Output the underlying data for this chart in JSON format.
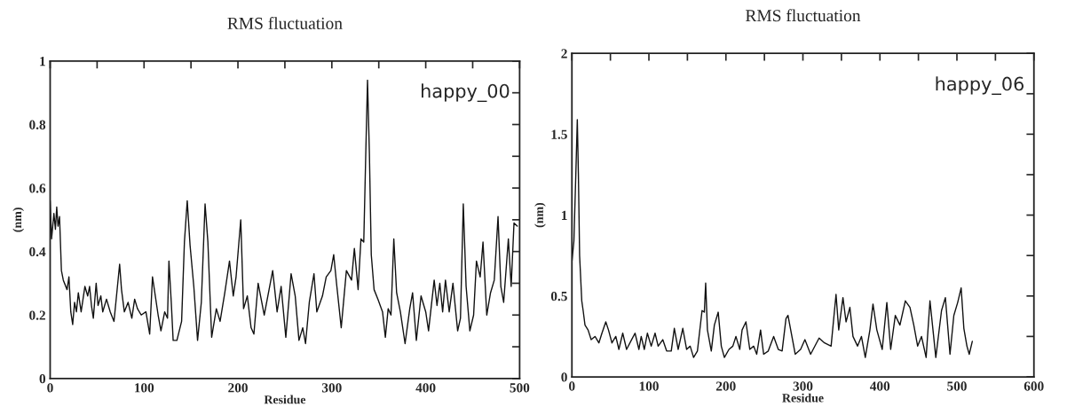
{
  "chart_data": [
    {
      "type": "line",
      "title": "RMS fluctuation",
      "xlabel": "Residue",
      "ylabel": "(nm)",
      "annotations": [
        "happy_00"
      ],
      "xlim": [
        0,
        500
      ],
      "ylim": [
        0,
        1
      ],
      "xticks": [
        0,
        {
          "value": 50,
          "label": null
        },
        100,
        {
          "value": 150,
          "label": null
        },
        200,
        {
          "value": 250,
          "label": null
        },
        300,
        {
          "value": 350,
          "label": null
        },
        400,
        {
          "value": 450,
          "label": null
        },
        500
      ],
      "yticks": [
        0,
        {
          "value": 0.1,
          "label": null
        },
        0.2,
        {
          "value": 0.3,
          "label": null
        },
        0.4,
        {
          "value": 0.5,
          "label": null
        },
        0.6,
        {
          "value": 0.7,
          "label": null
        },
        0.8,
        {
          "value": 0.9,
          "label": null
        },
        1
      ],
      "grid": false,
      "series": [
        {
          "color": "#111111",
          "x": [
            0,
            1.5,
            4,
            5.6,
            7,
            8.4,
            10,
            12,
            14,
            18,
            20,
            22,
            24,
            26,
            28,
            30,
            33,
            37,
            40,
            42,
            44,
            46,
            49,
            51,
            54,
            56,
            60,
            64,
            68,
            70,
            74,
            76,
            79,
            83,
            87,
            90,
            93,
            97,
            102,
            106,
            109,
            111,
            115,
            118,
            122,
            125,
            126.5,
            129,
            131,
            135,
            140,
            143,
            146,
            149,
            153,
            157,
            161,
            165,
            168,
            172,
            177,
            181,
            186,
            191,
            195,
            198,
            203,
            206,
            210,
            214,
            217,
            221.5,
            228,
            237,
            241.7,
            246,
            251,
            256.6,
            261,
            265,
            269,
            272,
            276,
            281,
            284,
            290,
            294,
            299,
            302,
            305,
            310,
            315.5,
            321,
            324,
            328,
            331,
            334,
            336,
            338,
            340,
            342,
            345,
            349,
            354,
            357,
            360,
            363,
            366,
            369,
            373,
            378,
            383,
            386,
            390,
            395,
            400,
            403,
            409,
            412,
            415,
            418,
            421,
            425,
            429,
            434,
            437,
            440,
            443,
            447,
            451,
            454,
            458,
            461,
            465,
            469,
            473,
            477,
            480,
            483,
            488,
            491,
            494,
            497.5
          ],
          "values": [
            0.56,
            0.44,
            0.52,
            0.47,
            0.54,
            0.48,
            0.51,
            0.34,
            0.31,
            0.28,
            0.32,
            0.21,
            0.17,
            0.24,
            0.21,
            0.27,
            0.21,
            0.29,
            0.26,
            0.29,
            0.23,
            0.19,
            0.3,
            0.23,
            0.26,
            0.21,
            0.25,
            0.21,
            0.18,
            0.24,
            0.36,
            0.28,
            0.21,
            0.24,
            0.19,
            0.25,
            0.22,
            0.2,
            0.21,
            0.14,
            0.32,
            0.28,
            0.2,
            0.15,
            0.21,
            0.19,
            0.37,
            0.24,
            0.12,
            0.12,
            0.18,
            0.43,
            0.56,
            0.42,
            0.29,
            0.12,
            0.24,
            0.55,
            0.43,
            0.13,
            0.22,
            0.18,
            0.27,
            0.37,
            0.26,
            0.32,
            0.5,
            0.22,
            0.26,
            0.16,
            0.14,
            0.3,
            0.2,
            0.34,
            0.21,
            0.29,
            0.13,
            0.33,
            0.26,
            0.12,
            0.16,
            0.11,
            0.24,
            0.33,
            0.21,
            0.26,
            0.32,
            0.34,
            0.39,
            0.3,
            0.16,
            0.34,
            0.31,
            0.41,
            0.28,
            0.44,
            0.43,
            0.69,
            0.94,
            0.71,
            0.39,
            0.28,
            0.25,
            0.21,
            0.13,
            0.22,
            0.2,
            0.44,
            0.27,
            0.21,
            0.11,
            0.22,
            0.27,
            0.12,
            0.26,
            0.21,
            0.15,
            0.31,
            0.23,
            0.3,
            0.21,
            0.31,
            0.21,
            0.3,
            0.15,
            0.19,
            0.55,
            0.29,
            0.15,
            0.2,
            0.37,
            0.32,
            0.43,
            0.2,
            0.27,
            0.31,
            0.51,
            0.29,
            0.24,
            0.44,
            0.29,
            0.49,
            0.48
          ]
        }
      ]
    },
    {
      "type": "line",
      "title": "RMS fluctuation",
      "xlabel": "Residue",
      "ylabel": "(nm)",
      "annotations": [
        "happy_06"
      ],
      "xlim": [
        0,
        600
      ],
      "ylim": [
        0,
        2
      ],
      "xticks": [
        0,
        {
          "value": 50,
          "label": null
        },
        100,
        {
          "value": 150,
          "label": null
        },
        200,
        {
          "value": 250,
          "label": null
        },
        300,
        {
          "value": 350,
          "label": null
        },
        400,
        {
          "value": 450,
          "label": null
        },
        500,
        {
          "value": 550,
          "label": null
        },
        600
      ],
      "yticks": [
        0,
        {
          "value": 0.25,
          "label": null
        },
        0.5,
        {
          "value": 0.75,
          "label": null
        },
        1,
        {
          "value": 1.25,
          "label": null
        },
        1.5,
        {
          "value": 1.75,
          "label": null
        },
        2
      ],
      "grid": false,
      "series": [
        {
          "color": "#111111",
          "x": [
            0,
            2.6,
            5,
            7,
            8.4,
            10,
            12.8,
            14.6,
            17,
            21,
            25,
            30,
            35,
            39,
            44,
            47.5,
            52,
            57,
            61,
            66,
            71,
            77.5,
            82,
            87,
            90,
            94,
            98,
            103,
            108,
            112,
            118,
            123,
            129,
            133,
            138,
            144,
            149,
            153.6,
            158,
            163,
            169,
            172,
            173.7,
            176,
            181,
            185,
            190,
            194,
            198,
            204,
            209,
            213,
            218,
            221,
            226,
            231,
            236,
            240,
            245,
            249,
            255,
            262,
            268,
            273,
            278,
            280.6,
            290,
            297,
            302.6,
            310,
            321,
            328,
            336.6,
            343,
            346.5,
            352,
            356,
            361,
            365,
            371,
            376,
            381,
            387,
            391,
            396,
            403,
            409,
            414,
            420,
            426,
            433,
            439,
            444,
            449,
            454,
            460,
            465,
            472.6,
            480,
            485,
            491,
            496,
            501,
            505.5,
            509,
            513,
            516,
            520
          ],
          "values": [
            0.71,
            0.84,
            1.24,
            1.59,
            1.26,
            0.75,
            0.47,
            0.41,
            0.32,
            0.29,
            0.23,
            0.25,
            0.21,
            0.27,
            0.34,
            0.29,
            0.21,
            0.25,
            0.17,
            0.27,
            0.17,
            0.23,
            0.27,
            0.17,
            0.25,
            0.17,
            0.27,
            0.19,
            0.27,
            0.19,
            0.23,
            0.16,
            0.16,
            0.3,
            0.17,
            0.3,
            0.17,
            0.19,
            0.12,
            0.16,
            0.41,
            0.4,
            0.58,
            0.29,
            0.16,
            0.32,
            0.4,
            0.19,
            0.12,
            0.17,
            0.19,
            0.25,
            0.17,
            0.29,
            0.34,
            0.17,
            0.19,
            0.14,
            0.29,
            0.14,
            0.16,
            0.25,
            0.17,
            0.16,
            0.36,
            0.38,
            0.14,
            0.17,
            0.23,
            0.14,
            0.24,
            0.21,
            0.19,
            0.51,
            0.29,
            0.49,
            0.34,
            0.43,
            0.25,
            0.19,
            0.25,
            0.12,
            0.29,
            0.45,
            0.29,
            0.17,
            0.46,
            0.17,
            0.38,
            0.32,
            0.47,
            0.43,
            0.32,
            0.19,
            0.25,
            0.12,
            0.47,
            0.12,
            0.41,
            0.49,
            0.14,
            0.38,
            0.46,
            0.55,
            0.3,
            0.19,
            0.14,
            0.22
          ]
        }
      ]
    }
  ]
}
